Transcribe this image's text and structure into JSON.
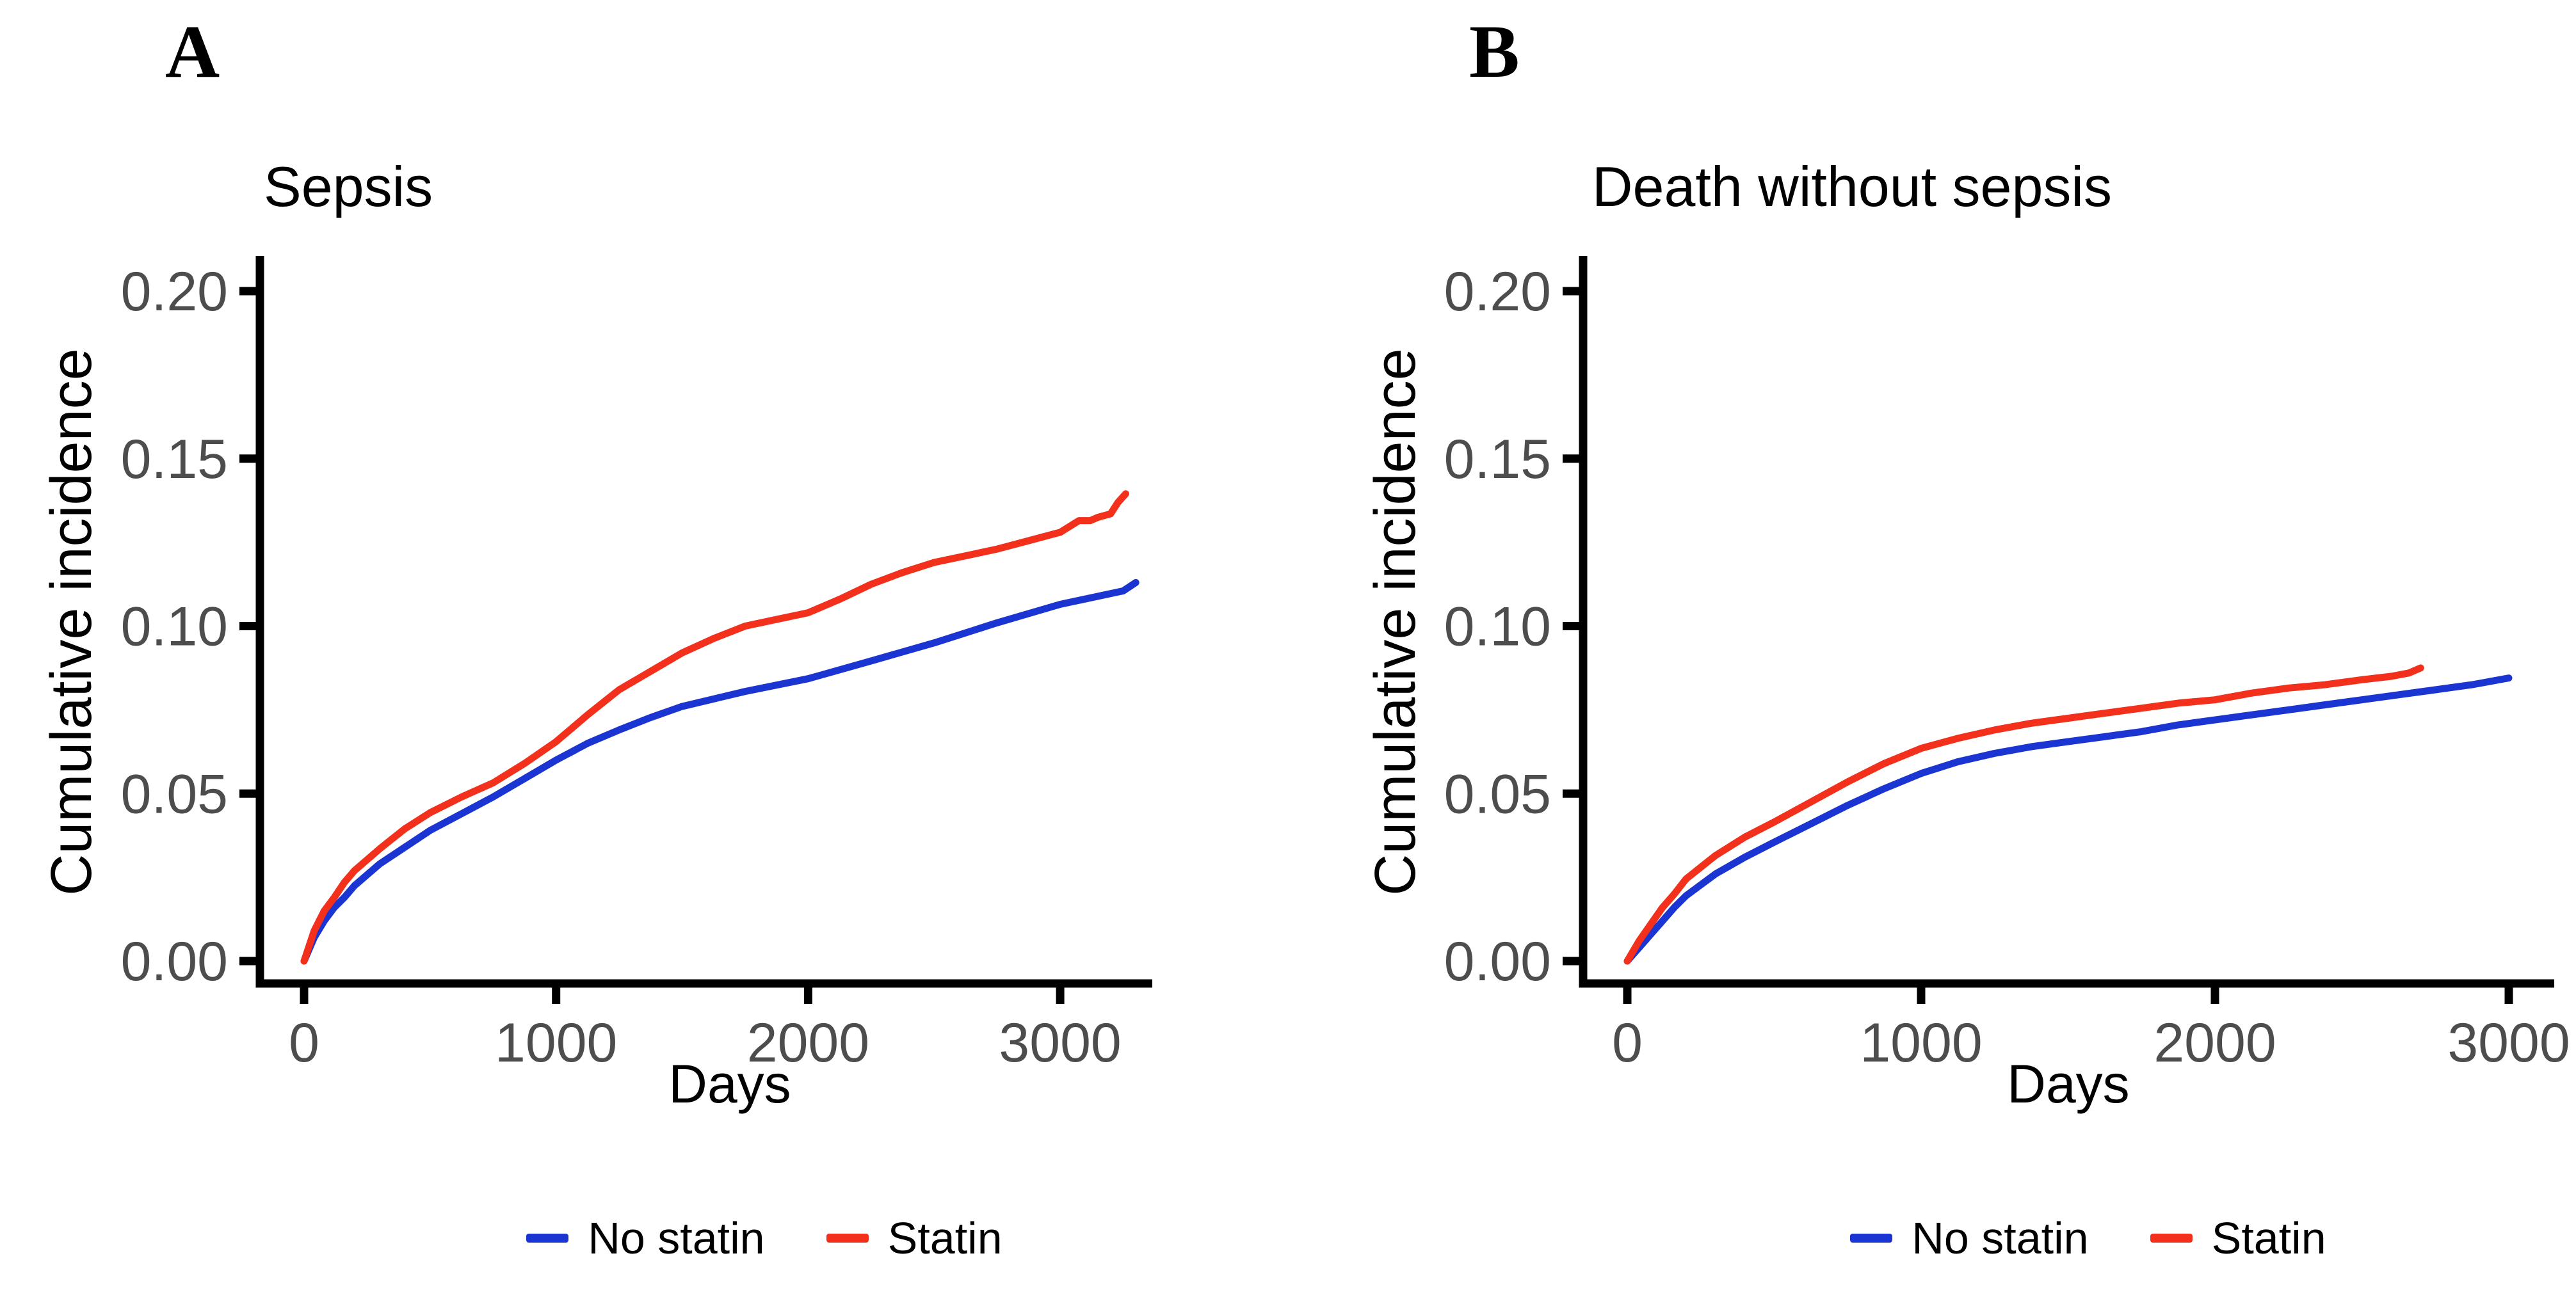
{
  "page": {
    "background": "#ffffff"
  },
  "colors": {
    "no_statin": "#1B35D3",
    "statin": "#F2301C",
    "axis": "#000000",
    "tick_text": "#4d4d4d"
  },
  "chart_data": [
    {
      "type": "line",
      "panel_label": "A",
      "title": "Sepsis",
      "xlabel": "Days",
      "ylabel": "Cumulative incidence",
      "xlim": [
        0,
        3350
      ],
      "ylim": [
        0,
        0.205
      ],
      "xticks": [
        0,
        1000,
        2000,
        3000
      ],
      "yticks": [
        0.0,
        0.05,
        0.1,
        0.15,
        0.2
      ],
      "grid": false,
      "legend_position": "bottom",
      "series": [
        {
          "name": "No statin",
          "color": "#1B35D3",
          "points": [
            [
              0,
              0
            ],
            [
              40,
              0.007
            ],
            [
              80,
              0.012
            ],
            [
              120,
              0.016
            ],
            [
              160,
              0.019
            ],
            [
              200,
              0.0225
            ],
            [
              300,
              0.029
            ],
            [
              400,
              0.034
            ],
            [
              500,
              0.039
            ],
            [
              625,
              0.044
            ],
            [
              750,
              0.049
            ],
            [
              875,
              0.0545
            ],
            [
              1000,
              0.06
            ],
            [
              1125,
              0.065
            ],
            [
              1250,
              0.069
            ],
            [
              1375,
              0.0727
            ],
            [
              1500,
              0.076
            ],
            [
              1750,
              0.0805
            ],
            [
              2000,
              0.0843
            ],
            [
              2250,
              0.0896
            ],
            [
              2500,
              0.095
            ],
            [
              2750,
              0.101
            ],
            [
              3000,
              0.1065
            ],
            [
              3125,
              0.1085
            ],
            [
              3250,
              0.1105
            ],
            [
              3300,
              0.113
            ]
          ]
        },
        {
          "name": "Statin",
          "color": "#F2301C",
          "points": [
            [
              0,
              0
            ],
            [
              40,
              0.009
            ],
            [
              80,
              0.015
            ],
            [
              120,
              0.019
            ],
            [
              160,
              0.0235
            ],
            [
              200,
              0.027
            ],
            [
              300,
              0.0335
            ],
            [
              400,
              0.0395
            ],
            [
              500,
              0.0443
            ],
            [
              625,
              0.049
            ],
            [
              750,
              0.0532
            ],
            [
              875,
              0.059
            ],
            [
              1000,
              0.0655
            ],
            [
              1125,
              0.0735
            ],
            [
              1250,
              0.081
            ],
            [
              1375,
              0.0865
            ],
            [
              1500,
              0.092
            ],
            [
              1625,
              0.0963
            ],
            [
              1750,
              0.1
            ],
            [
              1875,
              0.102
            ],
            [
              2000,
              0.104
            ],
            [
              2125,
              0.108
            ],
            [
              2250,
              0.1125
            ],
            [
              2375,
              0.116
            ],
            [
              2500,
              0.119
            ],
            [
              2625,
              0.121
            ],
            [
              2750,
              0.123
            ],
            [
              2875,
              0.1255
            ],
            [
              3000,
              0.128
            ],
            [
              3075,
              0.1315
            ],
            [
              3120,
              0.1315
            ],
            [
              3150,
              0.1325
            ],
            [
              3200,
              0.1335
            ],
            [
              3230,
              0.137
            ],
            [
              3260,
              0.1395
            ]
          ]
        }
      ]
    },
    {
      "type": "line",
      "panel_label": "B",
      "title": "Death without sepsis",
      "xlabel": "Days",
      "ylabel": "Cumulative incidence",
      "xlim": [
        0,
        3150
      ],
      "ylim": [
        0,
        0.205
      ],
      "xticks": [
        0,
        1000,
        2000,
        3000
      ],
      "yticks": [
        0.0,
        0.05,
        0.1,
        0.15,
        0.2
      ],
      "grid": false,
      "legend_position": "bottom",
      "series": [
        {
          "name": "No statin",
          "color": "#1B35D3",
          "points": [
            [
              0,
              0
            ],
            [
              40,
              0.004
            ],
            [
              80,
              0.008
            ],
            [
              120,
              0.012
            ],
            [
              160,
              0.016
            ],
            [
              200,
              0.0195
            ],
            [
              300,
              0.026
            ],
            [
              400,
              0.031
            ],
            [
              500,
              0.0355
            ],
            [
              625,
              0.041
            ],
            [
              750,
              0.0465
            ],
            [
              875,
              0.0515
            ],
            [
              1000,
              0.056
            ],
            [
              1125,
              0.0595
            ],
            [
              1250,
              0.062
            ],
            [
              1375,
              0.064
            ],
            [
              1500,
              0.0655
            ],
            [
              1625,
              0.067
            ],
            [
              1750,
              0.0685
            ],
            [
              1875,
              0.0705
            ],
            [
              2000,
              0.072
            ],
            [
              2125,
              0.0735
            ],
            [
              2250,
              0.075
            ],
            [
              2375,
              0.0765
            ],
            [
              2500,
              0.078
            ],
            [
              2625,
              0.0795
            ],
            [
              2750,
              0.081
            ],
            [
              2875,
              0.0825
            ],
            [
              3000,
              0.0845
            ]
          ]
        },
        {
          "name": "Statin",
          "color": "#F2301C",
          "points": [
            [
              0,
              0
            ],
            [
              40,
              0.006
            ],
            [
              80,
              0.011
            ],
            [
              120,
              0.016
            ],
            [
              160,
              0.02
            ],
            [
              200,
              0.0245
            ],
            [
              300,
              0.0315
            ],
            [
              400,
              0.037
            ],
            [
              500,
              0.0415
            ],
            [
              625,
              0.0475
            ],
            [
              750,
              0.0535
            ],
            [
              875,
              0.059
            ],
            [
              1000,
              0.0635
            ],
            [
              1125,
              0.0665
            ],
            [
              1250,
              0.069
            ],
            [
              1375,
              0.071
            ],
            [
              1500,
              0.0725
            ],
            [
              1625,
              0.074
            ],
            [
              1750,
              0.0755
            ],
            [
              1875,
              0.077
            ],
            [
              2000,
              0.078
            ],
            [
              2125,
              0.08
            ],
            [
              2250,
              0.0815
            ],
            [
              2375,
              0.0825
            ],
            [
              2500,
              0.084
            ],
            [
              2600,
              0.085
            ],
            [
              2660,
              0.086
            ],
            [
              2700,
              0.0875
            ]
          ]
        }
      ]
    }
  ]
}
